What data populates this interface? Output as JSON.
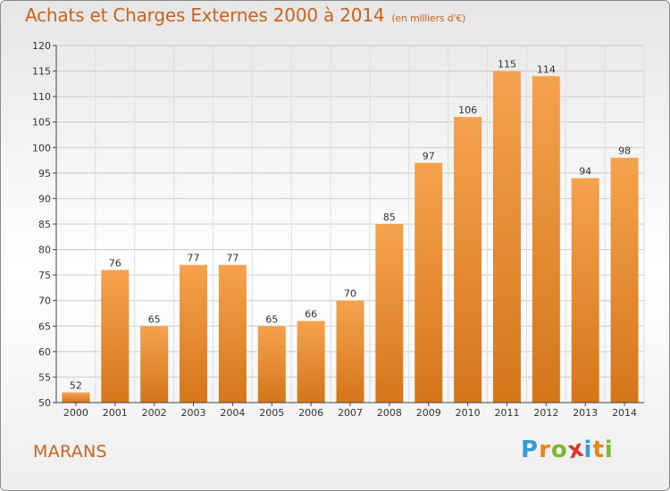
{
  "title": "Achats et Charges Externes 2000 à 2014",
  "subtitle": "(en milliers d'€)",
  "commune": "MARANS",
  "logo": {
    "letters": [
      "P",
      "r",
      "o",
      "x",
      "i",
      "t",
      "i"
    ],
    "colors": [
      "#3a9ad9",
      "#e8841a",
      "#7cb82f",
      "#d9342b",
      "#3a9ad9",
      "#e8841a",
      "#7cb82f"
    ]
  },
  "chart_data": {
    "type": "bar",
    "categories": [
      "2000",
      "2001",
      "2002",
      "2003",
      "2004",
      "2005",
      "2006",
      "2007",
      "2008",
      "2009",
      "2010",
      "2011",
      "2012",
      "2013",
      "2014"
    ],
    "values": [
      52,
      76,
      65,
      77,
      77,
      65,
      66,
      70,
      85,
      97,
      106,
      115,
      114,
      94,
      98
    ],
    "ylim": [
      50,
      120
    ],
    "yticks": [
      50,
      55,
      60,
      65,
      70,
      75,
      80,
      85,
      90,
      95,
      100,
      105,
      110,
      115,
      120
    ],
    "grid": true,
    "bar_color": "#f0922e",
    "bar_color_dark": "#d27514"
  }
}
